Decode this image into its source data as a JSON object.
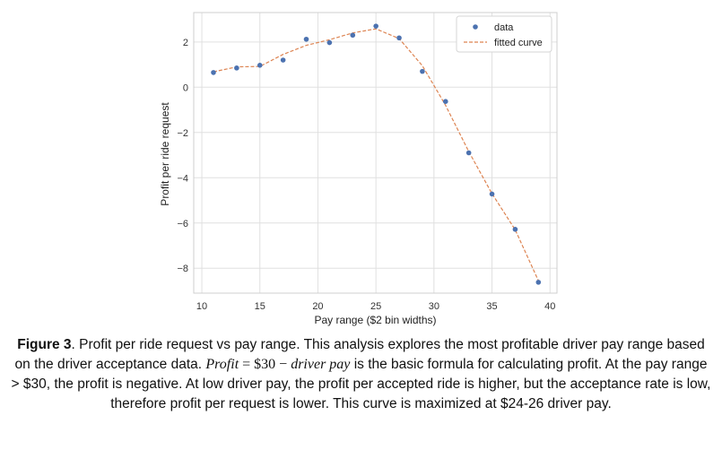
{
  "chart_data": {
    "type": "scatter",
    "title": "",
    "xlabel": "Pay range ($2 bin widths)",
    "ylabel": "Profit per ride request",
    "xlim": [
      9.3,
      40.6
    ],
    "ylim": [
      -9.1,
      3.3
    ],
    "xticks": [
      10,
      15,
      20,
      25,
      30,
      35,
      40
    ],
    "yticks": [
      2,
      0,
      -2,
      -4,
      -6,
      -8
    ],
    "ytick_labels": [
      "2",
      "0",
      "−2",
      "−4",
      "−6",
      "−8"
    ],
    "grid": true,
    "legend_position": "top-right",
    "series": [
      {
        "name": "data",
        "kind": "scatter",
        "color": "#4c72b0",
        "x": [
          11,
          13,
          15,
          17,
          19,
          21,
          23,
          25,
          27,
          29,
          31,
          33,
          35,
          37,
          39
        ],
        "y": [
          0.65,
          0.85,
          0.97,
          1.2,
          2.12,
          1.97,
          2.3,
          2.7,
          2.18,
          0.7,
          -0.63,
          -2.9,
          -4.72,
          -6.28,
          -8.62
        ]
      },
      {
        "name": "fitted curve",
        "kind": "line",
        "style": "dashed",
        "color": "#dd8452",
        "x": [
          11,
          13,
          15,
          17,
          19,
          21,
          23,
          25,
          27,
          29,
          31,
          33,
          35,
          37,
          39
        ],
        "y": [
          0.68,
          0.9,
          0.92,
          1.45,
          1.85,
          2.1,
          2.4,
          2.58,
          2.15,
          0.95,
          -0.8,
          -2.85,
          -4.7,
          -6.3,
          -8.55
        ]
      }
    ]
  },
  "caption": {
    "label": "Figure 3",
    "text_1": ". Profit per ride request vs pay range. This analysis explores the most profitable driver pay range based on the driver acceptance data. ",
    "formula_lhs": "Profit",
    "formula_eq": " = $30 − ",
    "formula_rhs": "driver pay",
    "text_2": " is the basic formula for calculating profit. At the pay range > $30, the profit is negative. At low driver pay, the profit per accepted ride is higher, but the acceptance rate is low, therefore profit per request is lower. This curve is maximized at $24-26 driver pay."
  }
}
